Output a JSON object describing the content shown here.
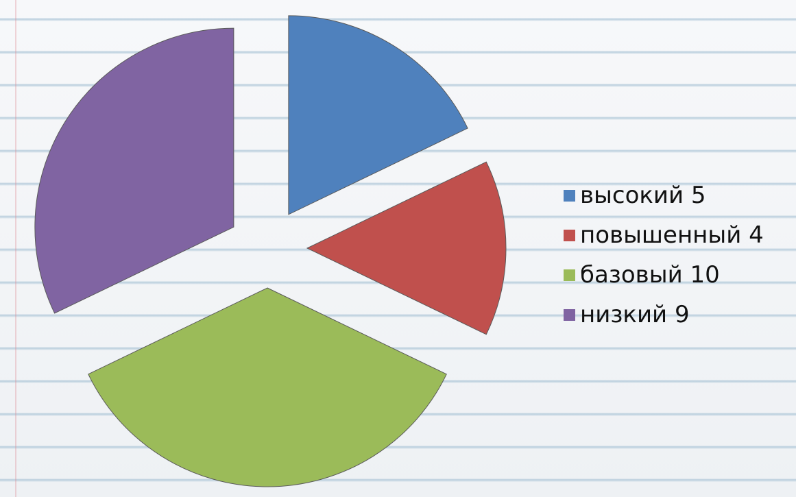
{
  "chart_data": {
    "type": "pie",
    "exploded": true,
    "categories": [
      "высокий 5",
      "повышенный 4",
      "базовый 10",
      "низкий 9"
    ],
    "values": [
      5,
      4,
      10,
      9
    ],
    "colors": [
      "#4f81bd",
      "#c0504d",
      "#9bbb59",
      "#8064a2"
    ],
    "legend_position": "right",
    "title": ""
  },
  "legend": {
    "items": [
      {
        "label": "высокий 5",
        "color": "#4f81bd"
      },
      {
        "label": "повышенный 4",
        "color": "#c0504d"
      },
      {
        "label": "базовый 10",
        "color": "#9bbb59"
      },
      {
        "label": "низкий 9",
        "color": "#8064a2"
      }
    ]
  }
}
